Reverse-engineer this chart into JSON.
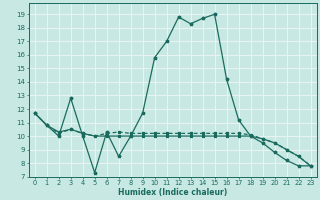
{
  "xlabel": "Humidex (Indice chaleur)",
  "xlim": [
    -0.5,
    23.5
  ],
  "ylim": [
    7,
    19.8
  ],
  "yticks": [
    7,
    8,
    9,
    10,
    11,
    12,
    13,
    14,
    15,
    16,
    17,
    18,
    19
  ],
  "xticks": [
    0,
    1,
    2,
    3,
    4,
    5,
    6,
    7,
    8,
    9,
    10,
    11,
    12,
    13,
    14,
    15,
    16,
    17,
    18,
    19,
    20,
    21,
    22,
    23
  ],
  "bg_color": "#c8e8e4",
  "grid_color": "#e8f4f2",
  "line_color": "#1a6b5e",
  "line1_x": [
    0,
    1,
    2,
    3,
    4,
    5,
    6,
    7,
    8,
    9,
    10,
    11,
    12,
    13,
    14,
    15,
    16,
    17,
    18,
    19,
    20,
    21,
    22,
    23
  ],
  "line1_y": [
    11.7,
    10.8,
    10.0,
    12.8,
    10.0,
    7.3,
    10.3,
    8.5,
    10.0,
    11.7,
    15.8,
    17.0,
    18.8,
    18.3,
    18.7,
    19.0,
    14.2,
    11.2,
    10.0,
    9.5,
    8.8,
    8.2,
    7.8,
    7.8
  ],
  "line2_x": [
    0,
    1,
    2,
    3,
    4,
    5,
    6,
    7,
    8,
    9,
    10,
    11,
    12,
    13,
    14,
    15,
    16,
    17,
    18,
    19,
    20,
    21,
    22,
    23
  ],
  "line2_y": [
    11.7,
    10.8,
    10.2,
    10.5,
    10.2,
    10.0,
    10.2,
    10.3,
    10.2,
    10.2,
    10.2,
    10.2,
    10.2,
    10.2,
    10.2,
    10.2,
    10.2,
    10.2,
    10.1,
    9.8,
    9.5,
    9.0,
    8.5,
    7.8
  ],
  "line3_x": [
    0,
    1,
    2,
    3,
    4,
    5,
    6,
    7,
    8,
    9,
    10,
    11,
    12,
    13,
    14,
    15,
    16,
    17,
    18,
    19,
    20,
    21,
    22,
    23
  ],
  "line3_y": [
    11.7,
    10.8,
    10.3,
    10.5,
    10.2,
    10.0,
    10.0,
    10.0,
    10.0,
    10.0,
    10.0,
    10.0,
    10.0,
    10.0,
    10.0,
    10.0,
    10.0,
    10.0,
    10.0,
    9.8,
    9.5,
    9.0,
    8.5,
    7.8
  ]
}
